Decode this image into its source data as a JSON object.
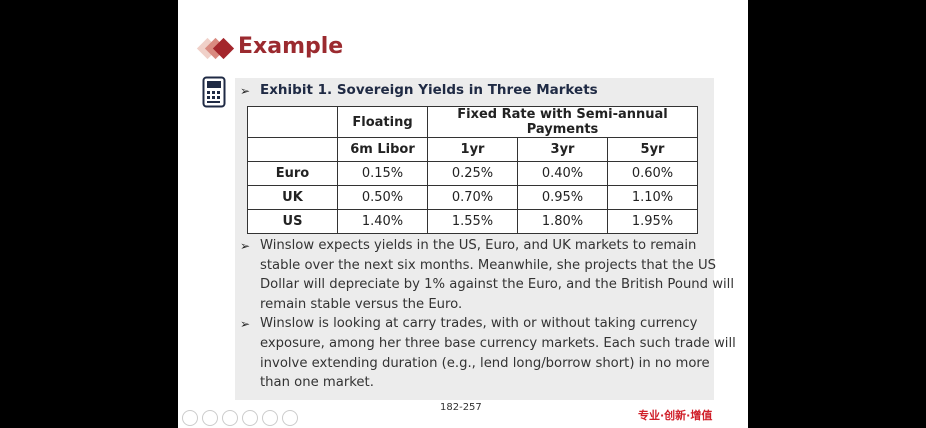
{
  "header": {
    "title": "Example"
  },
  "exhibit": {
    "title": "Exhibit 1. Sovereign Yields in Three Markets"
  },
  "table": {
    "header_rows": [
      [
        "",
        "Floating",
        "Fixed Rate with Semi-annual Payments"
      ],
      [
        "",
        "6m Libor",
        "1yr",
        "3yr",
        "5yr"
      ]
    ],
    "rows": [
      [
        "Euro",
        "0.15%",
        "0.25%",
        "0.40%",
        "0.60%"
      ],
      [
        "UK",
        "0.50%",
        "0.70%",
        "0.95%",
        "1.10%"
      ],
      [
        "US",
        "1.40%",
        "1.55%",
        "1.80%",
        "1.95%"
      ]
    ]
  },
  "bullets": [
    [
      "Winslow expects yields in the US, Euro, and UK markets to remain",
      "stable over the next six months. Meanwhile, she projects that the US",
      "Dollar will depreciate by 1% against the Euro, and the British Pound will",
      "remain stable versus the Euro."
    ],
    [
      "Winslow is looking at carry trades, with or without taking currency",
      "exposure, among her three base currency markets. Each such trade will",
      "involve extending duration (e.g., lend long/borrow short) in no more",
      "than one market."
    ]
  ],
  "footer": {
    "page_number": "182-257",
    "slogan": "专业·创新·增值"
  }
}
